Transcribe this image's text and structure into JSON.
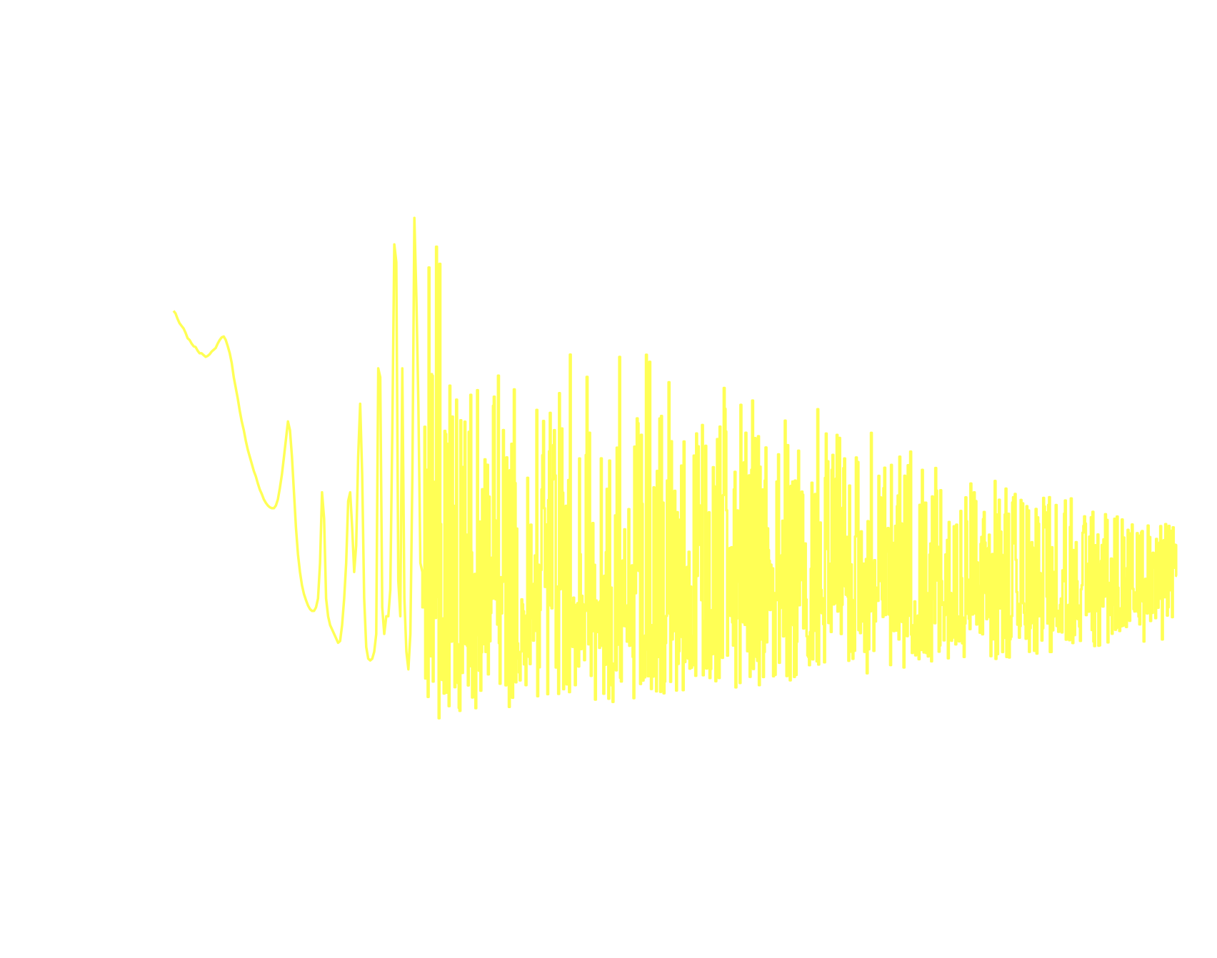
{
  "chart_data": {
    "type": "line",
    "title": "",
    "xlabel": "",
    "ylabel": "",
    "axes_visible": false,
    "grid": false,
    "legend": "none",
    "xlim": [
      0,
      1000
    ],
    "ylim": [
      0,
      1
    ],
    "series": [
      {
        "color": "#ffff55",
        "style": "smooth-then-spiky",
        "x": [
          0,
          2,
          4,
          6,
          8,
          10,
          12,
          14,
          16,
          18,
          20,
          22,
          24,
          26,
          28,
          30,
          32,
          34,
          36,
          38,
          40,
          42,
          44,
          46,
          48,
          50,
          52,
          54,
          56,
          58,
          60,
          62,
          64,
          66,
          68,
          70,
          72,
          74,
          76,
          78,
          80,
          82,
          84,
          86,
          88,
          90,
          92,
          94,
          96,
          98,
          100,
          102,
          104,
          106,
          108,
          110,
          112,
          114,
          116,
          118,
          120,
          122,
          124,
          126,
          128,
          130,
          132,
          134,
          136,
          138,
          140,
          142,
          144,
          146,
          148,
          150,
          152,
          154,
          156,
          158,
          160,
          162,
          164,
          166,
          168,
          170,
          172,
          174,
          176,
          178,
          180,
          182,
          184,
          186,
          188,
          190,
          192,
          194,
          196,
          198,
          200,
          202,
          204,
          206,
          208,
          210,
          212,
          214,
          216,
          218,
          220,
          222,
          224,
          226,
          228,
          230,
          232,
          234,
          236,
          238,
          240,
          242,
          244,
          246,
          248,
          250
        ],
        "y": [
          0.665,
          0.662,
          0.656,
          0.651,
          0.648,
          0.645,
          0.64,
          0.634,
          0.632,
          0.628,
          0.625,
          0.624,
          0.62,
          0.617,
          0.617,
          0.615,
          0.613,
          0.614,
          0.616,
          0.619,
          0.621,
          0.623,
          0.628,
          0.632,
          0.635,
          0.636,
          0.632,
          0.625,
          0.617,
          0.606,
          0.59,
          0.578,
          0.566,
          0.552,
          0.54,
          0.53,
          0.518,
          0.508,
          0.5,
          0.492,
          0.484,
          0.478,
          0.47,
          0.463,
          0.458,
          0.452,
          0.448,
          0.445,
          0.443,
          0.442,
          0.442,
          0.445,
          0.452,
          0.465,
          0.48,
          0.5,
          0.52,
          0.54,
          0.53,
          0.5,
          0.46,
          0.42,
          0.39,
          0.37,
          0.355,
          0.345,
          0.338,
          0.332,
          0.328,
          0.326,
          0.326,
          0.33,
          0.34,
          0.38,
          0.46,
          0.43,
          0.34,
          0.32,
          0.31,
          0.305,
          0.3,
          0.295,
          0.29,
          0.292,
          0.31,
          0.34,
          0.38,
          0.45,
          0.46,
          0.42,
          0.37,
          0.4,
          0.5,
          0.56,
          0.48,
          0.34,
          0.285,
          0.272,
          0.27,
          0.272,
          0.28,
          0.3,
          0.6,
          0.59,
          0.33,
          0.3,
          0.32,
          0.32,
          0.35,
          0.53,
          0.74,
          0.72,
          0.36,
          0.32,
          0.6,
          0.34,
          0.28,
          0.26,
          0.3,
          0.48,
          0.77,
          0.68,
          0.56,
          0.38,
          0.37,
          0.33
        ]
      }
    ],
    "noise_region": {
      "x_start": 250,
      "x_end": 1000,
      "baseline": 0.34,
      "spread_start": 0.19,
      "spread_end": 0.06,
      "peak_max": 0.78,
      "peak_end": 0.4
    }
  }
}
